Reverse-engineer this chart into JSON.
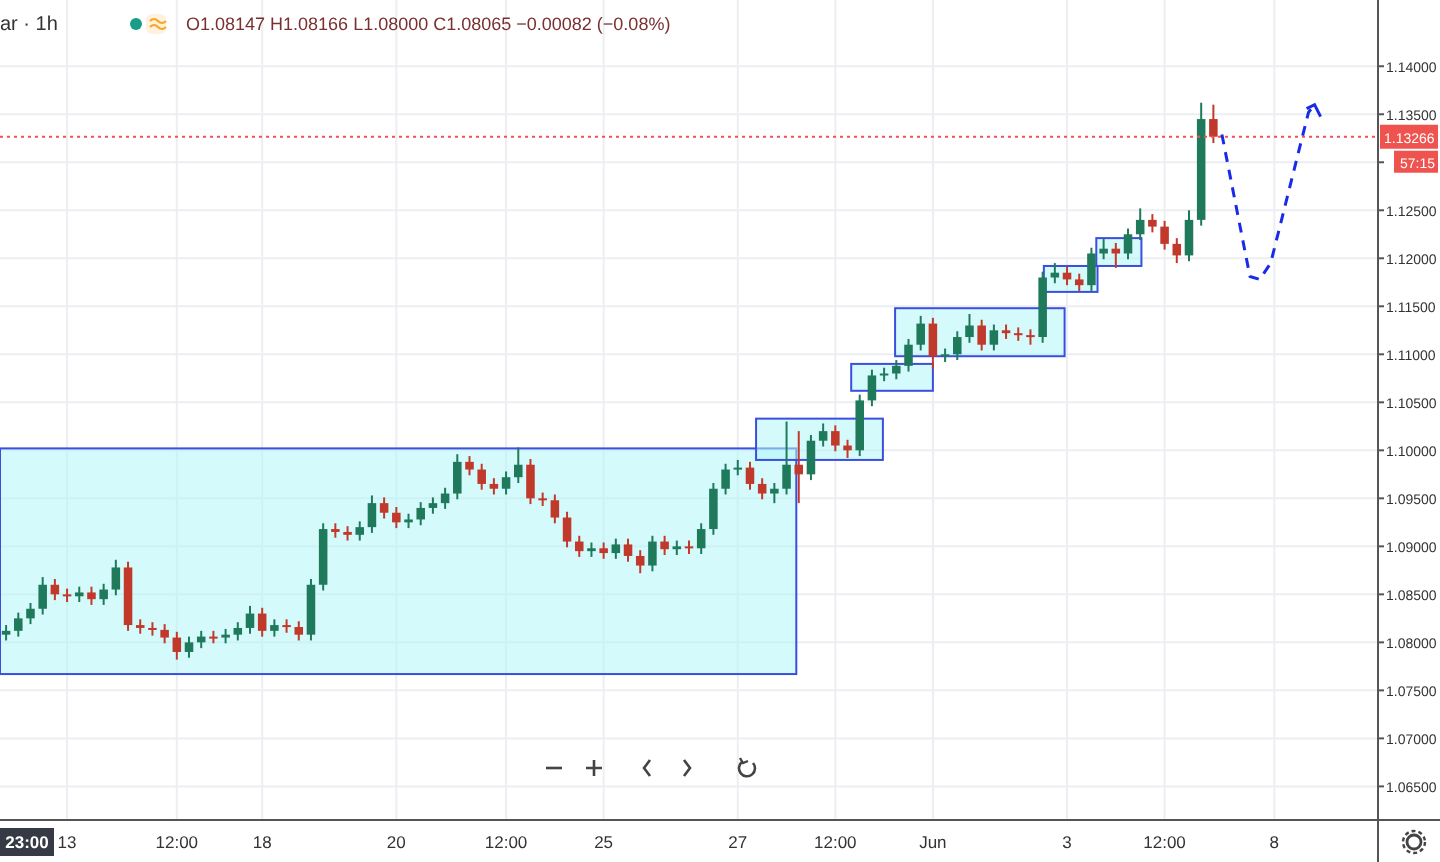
{
  "chart_data": {
    "type": "candlestick",
    "categories": [
      null,
      null,
      null,
      null,
      null,
      "13",
      null,
      null,
      null,
      null,
      null,
      null,
      null,
      null,
      "12:00",
      null,
      null,
      null,
      null,
      null,
      null,
      "18",
      null,
      null,
      null,
      null,
      null,
      null,
      null,
      null,
      null,
      null,
      "20",
      null,
      null,
      null,
      null,
      null,
      null,
      null,
      null,
      "12:00",
      null,
      null,
      null,
      null,
      null,
      null,
      null,
      "25",
      null,
      null,
      null,
      null,
      null,
      null,
      null,
      null,
      null,
      null,
      "27",
      null,
      null,
      null,
      null,
      null,
      null,
      null,
      "12:00",
      null,
      null,
      null,
      null,
      null,
      null,
      null,
      "Jun",
      null,
      null,
      null,
      null,
      null,
      null,
      null,
      null,
      null,
      null,
      "3",
      null,
      null,
      null,
      null,
      null,
      null,
      null,
      "12:00",
      null,
      null,
      null,
      null,
      null,
      null,
      null,
      null,
      "8",
      null,
      null,
      null,
      null,
      null,
      null,
      null,
      null
    ],
    "ohlc": [
      [
        1.0808,
        1.0818,
        1.0802,
        1.0812
      ],
      [
        1.0812,
        1.0831,
        1.0806,
        1.0825
      ],
      [
        1.0825,
        1.0841,
        1.0819,
        1.0835
      ],
      [
        1.0835,
        1.0868,
        1.0829,
        1.086
      ],
      [
        1.086,
        1.0866,
        1.0844,
        1.085
      ],
      [
        1.085,
        1.0856,
        1.0842,
        1.0848
      ],
      [
        1.0848,
        1.0858,
        1.0842,
        1.0852
      ],
      [
        1.0852,
        1.0858,
        1.0839,
        1.0845
      ],
      [
        1.0845,
        1.0861,
        1.0839,
        1.0855
      ],
      [
        1.0855,
        1.0886,
        1.0849,
        1.0878
      ],
      [
        1.0878,
        1.0884,
        1.0812,
        1.0818
      ],
      [
        1.0818,
        1.0824,
        1.0809,
        1.0815
      ],
      [
        1.0815,
        1.0821,
        1.0807,
        1.0813
      ],
      [
        1.0813,
        1.0819,
        1.0799,
        1.0805
      ],
      [
        1.0805,
        1.0811,
        1.0782,
        1.079
      ],
      [
        1.079,
        1.0806,
        1.0784,
        1.08
      ],
      [
        1.08,
        1.0812,
        1.0794,
        1.0806
      ],
      [
        1.0806,
        1.0812,
        1.0799,
        1.0805
      ],
      [
        1.0805,
        1.0814,
        1.0799,
        1.0808
      ],
      [
        1.0808,
        1.0821,
        1.0802,
        1.0815
      ],
      [
        1.0815,
        1.0838,
        1.0809,
        1.083
      ],
      [
        1.083,
        1.0836,
        1.0806,
        1.0812
      ],
      [
        1.0812,
        1.0824,
        1.0806,
        1.0818
      ],
      [
        1.0818,
        1.0824,
        1.081,
        1.0816
      ],
      [
        1.0816,
        1.0822,
        1.0802,
        1.0808
      ],
      [
        1.0808,
        1.0866,
        1.0802,
        1.086
      ],
      [
        1.086,
        1.0924,
        1.0854,
        1.0918
      ],
      [
        1.0918,
        1.0924,
        1.0909,
        1.0915
      ],
      [
        1.0915,
        1.0921,
        1.0906,
        1.0912
      ],
      [
        1.0912,
        1.0926,
        1.0906,
        1.092
      ],
      [
        1.092,
        1.0953,
        1.0914,
        1.0945
      ],
      [
        1.0945,
        1.0951,
        1.0929,
        1.0935
      ],
      [
        1.0935,
        1.0941,
        1.0919,
        1.0925
      ],
      [
        1.0925,
        1.0934,
        1.0919,
        1.0928
      ],
      [
        1.0928,
        1.0946,
        1.0922,
        1.094
      ],
      [
        1.094,
        1.0951,
        1.0934,
        1.0945
      ],
      [
        1.0945,
        1.0961,
        1.0939,
        1.0955
      ],
      [
        1.0955,
        1.0996,
        1.0949,
        1.0988
      ],
      [
        1.0988,
        1.0994,
        1.0974,
        1.098
      ],
      [
        1.098,
        1.0986,
        1.0959,
        1.0965
      ],
      [
        1.0965,
        1.0971,
        1.0954,
        1.096
      ],
      [
        1.096,
        1.0978,
        1.0954,
        1.0972
      ],
      [
        1.0972,
        1.1003,
        1.0966,
        1.0985
      ],
      [
        1.0985,
        1.0991,
        1.0944,
        1.095
      ],
      [
        1.095,
        1.0956,
        1.0942,
        1.0948
      ],
      [
        1.0948,
        1.0954,
        1.0924,
        1.093
      ],
      [
        1.093,
        1.0936,
        1.0899,
        1.0905
      ],
      [
        1.0905,
        1.0911,
        1.0889,
        1.0895
      ],
      [
        1.0895,
        1.0904,
        1.0889,
        1.0898
      ],
      [
        1.0898,
        1.0904,
        1.0887,
        1.0893
      ],
      [
        1.0893,
        1.0908,
        1.0887,
        1.0902
      ],
      [
        1.0902,
        1.0908,
        1.0884,
        1.089
      ],
      [
        1.089,
        1.0896,
        1.0872,
        1.088
      ],
      [
        1.088,
        1.0911,
        1.0874,
        1.0905
      ],
      [
        1.0905,
        1.0911,
        1.0891,
        1.0897
      ],
      [
        1.0897,
        1.0906,
        1.0891,
        1.09
      ],
      [
        1.09,
        1.0906,
        1.0892,
        1.0898
      ],
      [
        1.0898,
        1.0924,
        1.0892,
        1.0918
      ],
      [
        1.0918,
        1.0966,
        1.0912,
        1.096
      ],
      [
        1.096,
        1.0986,
        1.0954,
        1.098
      ],
      [
        1.098,
        1.099,
        1.0974,
        1.0982
      ],
      [
        1.0982,
        1.0988,
        1.0959,
        1.0965
      ],
      [
        1.0965,
        1.0971,
        1.0949,
        1.0955
      ],
      [
        1.0955,
        1.0966,
        1.0945,
        1.096
      ],
      [
        1.096,
        1.103,
        1.0954,
        1.0985
      ],
      [
        1.0985,
        1.102,
        1.0945,
        1.0975
      ],
      [
        1.0975,
        1.1016,
        1.0969,
        1.101
      ],
      [
        1.101,
        1.1028,
        1.1004,
        1.102
      ],
      [
        1.102,
        1.1026,
        1.0999,
        1.1005
      ],
      [
        1.1005,
        1.1011,
        1.0992,
        1.1
      ],
      [
        1.1,
        1.1058,
        1.0994,
        1.1052
      ],
      [
        1.1052,
        1.1084,
        1.1046,
        1.1078
      ],
      [
        1.1078,
        1.1086,
        1.1072,
        1.108
      ],
      [
        1.108,
        1.1094,
        1.1074,
        1.1088
      ],
      [
        1.1088,
        1.1116,
        1.1082,
        1.111
      ],
      [
        1.111,
        1.114,
        1.1104,
        1.1132
      ],
      [
        1.1132,
        1.1138,
        1.1085,
        1.1098
      ],
      [
        1.1098,
        1.1106,
        1.1092,
        1.11
      ],
      [
        1.11,
        1.1124,
        1.1094,
        1.1118
      ],
      [
        1.1118,
        1.1142,
        1.1112,
        1.113
      ],
      [
        1.113,
        1.1136,
        1.1104,
        1.111
      ],
      [
        1.111,
        1.1131,
        1.1104,
        1.1125
      ],
      [
        1.1125,
        1.1131,
        1.1116,
        1.1122
      ],
      [
        1.1122,
        1.1128,
        1.1114,
        1.112
      ],
      [
        1.112,
        1.1126,
        1.111,
        1.1118
      ],
      [
        1.1118,
        1.1186,
        1.1112,
        1.118
      ],
      [
        1.118,
        1.1195,
        1.1174,
        1.1185
      ],
      [
        1.1185,
        1.1191,
        1.1172,
        1.1178
      ],
      [
        1.1178,
        1.1184,
        1.1166,
        1.1172
      ],
      [
        1.1172,
        1.1211,
        1.1166,
        1.1205
      ],
      [
        1.1205,
        1.122,
        1.1199,
        1.121
      ],
      [
        1.121,
        1.1216,
        1.119,
        1.1205
      ],
      [
        1.1205,
        1.1231,
        1.1199,
        1.1225
      ],
      [
        1.1225,
        1.1252,
        1.1219,
        1.124
      ],
      [
        1.124,
        1.1246,
        1.1227,
        1.1233
      ],
      [
        1.1233,
        1.1239,
        1.1209,
        1.1215
      ],
      [
        1.1215,
        1.1221,
        1.1195,
        1.1203
      ],
      [
        1.1203,
        1.125,
        1.1197,
        1.124
      ],
      [
        1.124,
        1.1362,
        1.1234,
        1.1345
      ],
      [
        1.1345,
        1.136,
        1.132,
        1.13266
      ],
      null,
      null,
      null,
      null,
      null,
      null,
      null,
      null,
      null,
      null,
      null,
      null,
      null
    ],
    "ylim": [
      1.0615,
      1.1469
    ],
    "yticks": [
      {
        "value": 1.065,
        "label": "1.06500"
      },
      {
        "value": 1.07,
        "label": "1.07000"
      },
      {
        "value": 1.075,
        "label": "1.07500"
      },
      {
        "value": 1.08,
        "label": "1.08000"
      },
      {
        "value": 1.085,
        "label": "1.08500"
      },
      {
        "value": 1.09,
        "label": "1.09000"
      },
      {
        "value": 1.095,
        "label": "1.09500"
      },
      {
        "value": 1.1,
        "label": "1.10000"
      },
      {
        "value": 1.105,
        "label": "1.10500"
      },
      {
        "value": 1.11,
        "label": "1.11000"
      },
      {
        "value": 1.115,
        "label": "1.11500"
      },
      {
        "value": 1.12,
        "label": "1.12000"
      },
      {
        "value": 1.125,
        "label": "1.12500"
      },
      {
        "value": 1.13,
        "label": null
      },
      {
        "value": 1.135,
        "label": "1.13500"
      },
      {
        "value": 1.14,
        "label": "1.14000"
      }
    ],
    "grid": true,
    "ref_lines": [
      {
        "axis": "y",
        "value": 1.13266,
        "label": "1.13266",
        "color": "#ef5350",
        "line_style": "dotted"
      }
    ],
    "annotations": [
      "ar · 1h",
      "O1.08147 H1.08166 L1.08000 C1.08065 −0.00082 (−0.08%)",
      "57:15",
      "23:00"
    ]
  }
}
